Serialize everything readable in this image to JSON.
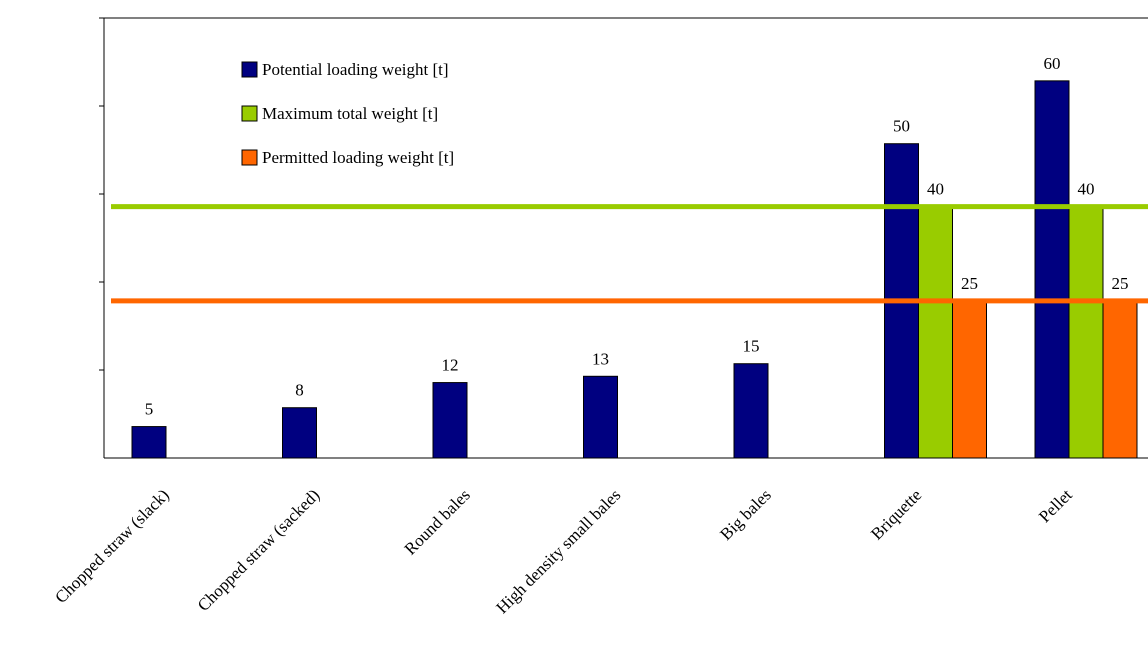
{
  "chart_data": {
    "type": "bar",
    "categories": [
      "Chopped straw (slack)",
      "Chopped straw (sacked)",
      "Round bales",
      "High density small bales",
      "Big bales",
      "Briquette",
      "Pellet"
    ],
    "series": [
      {
        "name": "Potential loading weight [t]",
        "color": "#000080",
        "values": [
          5,
          8,
          12,
          13,
          15,
          50,
          60
        ]
      },
      {
        "name": "Maximum total weight [t]",
        "color": "#99CC00",
        "values": [
          null,
          null,
          null,
          null,
          null,
          40,
          40
        ]
      },
      {
        "name": "Permitted loading weight [t]",
        "color": "#FF6600",
        "values": [
          null,
          null,
          null,
          null,
          null,
          25,
          25
        ]
      }
    ],
    "reference_lines": [
      {
        "value": 40,
        "color": "#99CC00"
      },
      {
        "value": 25,
        "color": "#FF6600"
      }
    ],
    "ylim": [
      0,
      70
    ],
    "legend_position": "top-left",
    "grid": false
  }
}
